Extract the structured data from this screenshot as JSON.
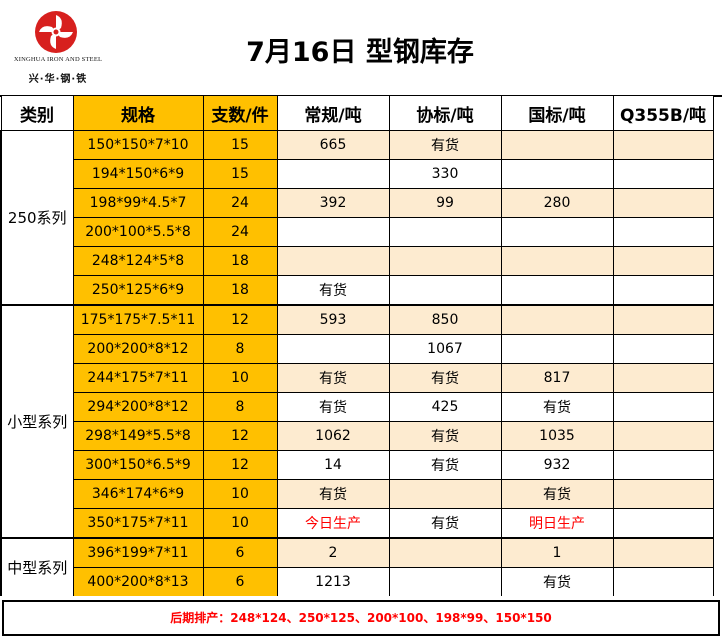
{
  "logo": {
    "en_text": "XINGHUA IRON AND STEEL",
    "cn_text": "兴·华·钢·铁",
    "icon": "pinwheel-logo-icon",
    "color": "#D7201E"
  },
  "title": "7月16日  型钢库存",
  "columns": [
    "类别",
    "规格",
    "支数/件",
    "常规/吨",
    "协标/吨",
    "国标/吨",
    "Q355B/吨"
  ],
  "groups": [
    {
      "name": "250系列",
      "rows": [
        {
          "spec": "150*150*7*10",
          "qty": "15",
          "regular": "665",
          "assoc": "有货",
          "national": "",
          "q355b": "",
          "band": true
        },
        {
          "spec": "194*150*6*9",
          "qty": "15",
          "regular": "",
          "assoc": "330",
          "national": "",
          "q355b": "",
          "band": false
        },
        {
          "spec": "198*99*4.5*7",
          "qty": "24",
          "regular": "392",
          "assoc": "99",
          "national": "280",
          "q355b": "",
          "band": true
        },
        {
          "spec": "200*100*5.5*8",
          "qty": "24",
          "regular": "",
          "assoc": "",
          "national": "",
          "q355b": "",
          "band": false
        },
        {
          "spec": "248*124*5*8",
          "qty": "18",
          "regular": "",
          "assoc": "",
          "national": "",
          "q355b": "",
          "band": true
        },
        {
          "spec": "250*125*6*9",
          "qty": "18",
          "regular": "有货",
          "assoc": "",
          "national": "",
          "q355b": "",
          "band": false
        }
      ]
    },
    {
      "name": "小型系列",
      "rows": [
        {
          "spec": "175*175*7.5*11",
          "qty": "12",
          "regular": "593",
          "assoc": "850",
          "national": "",
          "q355b": "",
          "band": true
        },
        {
          "spec": "200*200*8*12",
          "qty": "8",
          "regular": "",
          "assoc": "1067",
          "national": "",
          "q355b": "",
          "band": false
        },
        {
          "spec": "244*175*7*11",
          "qty": "10",
          "regular": "有货",
          "assoc": "有货",
          "national": "817",
          "q355b": "",
          "band": true
        },
        {
          "spec": "294*200*8*12",
          "qty": "8",
          "regular": "有货",
          "assoc": "425",
          "national": "有货",
          "q355b": "",
          "band": false
        },
        {
          "spec": "298*149*5.5*8",
          "qty": "12",
          "regular": "1062",
          "assoc": "有货",
          "national": "1035",
          "q355b": "",
          "band": true
        },
        {
          "spec": "300*150*6.5*9",
          "qty": "12",
          "regular": "14",
          "assoc": "有货",
          "national": "932",
          "q355b": "",
          "band": false
        },
        {
          "spec": "346*174*6*9",
          "qty": "10",
          "regular": "有货",
          "assoc": "",
          "national": "有货",
          "q355b": "",
          "band": true
        },
        {
          "spec": "350*175*7*11",
          "qty": "10",
          "regular": "今日生产",
          "assoc": "有货",
          "national": "明日生产",
          "q355b": "",
          "band": false,
          "red": [
            "regular",
            "national"
          ]
        }
      ]
    },
    {
      "name": "中型系列",
      "rows": [
        {
          "spec": "396*199*7*11",
          "qty": "6",
          "regular": "2",
          "assoc": "",
          "national": "1",
          "q355b": "",
          "band": true
        },
        {
          "spec": "400*200*8*13",
          "qty": "6",
          "regular": "1213",
          "assoc": "",
          "national": "有货",
          "q355b": "",
          "band": false
        }
      ]
    }
  ],
  "footer": "后期排产：248*124、250*125、200*100、198*99、150*150",
  "colors": {
    "header_fill": "#FFC000",
    "band_fill": "#FDEBD0",
    "alert_text": "#FF0000"
  }
}
